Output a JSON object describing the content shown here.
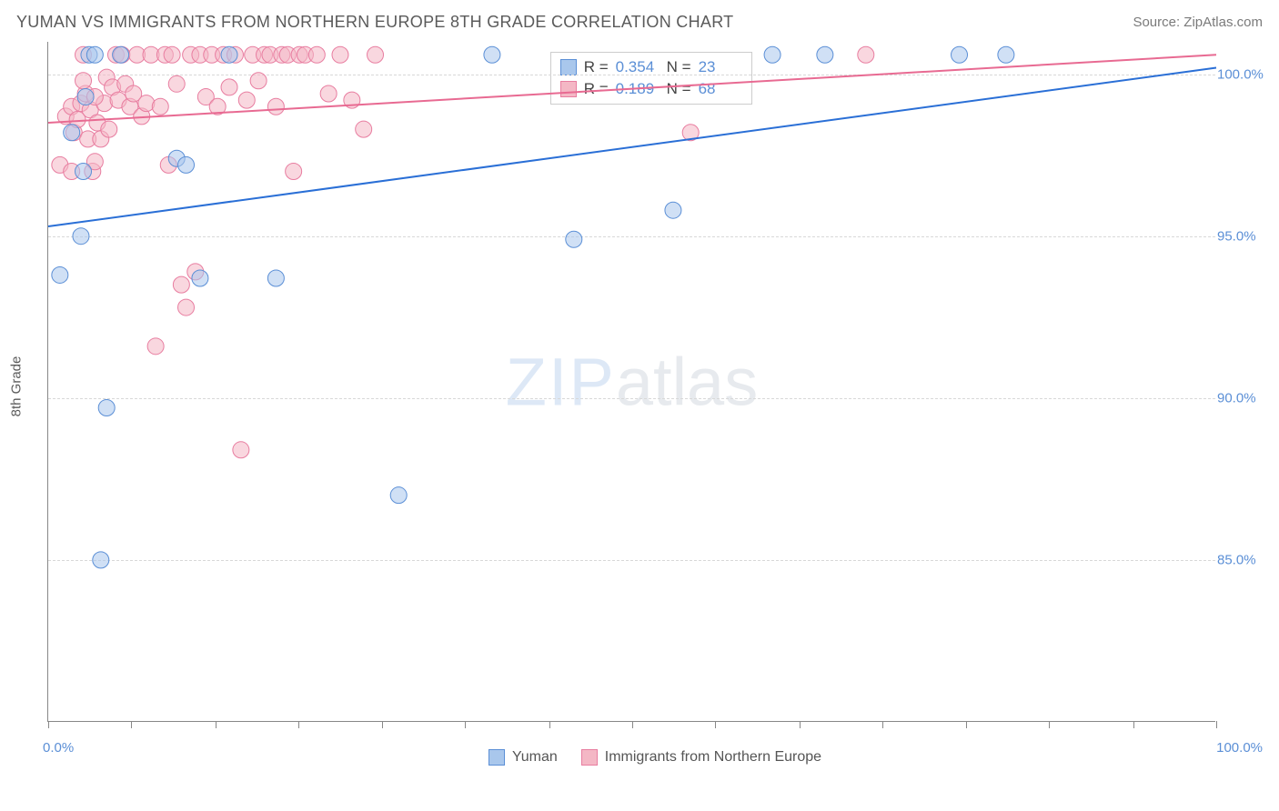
{
  "header": {
    "title": "YUMAN VS IMMIGRANTS FROM NORTHERN EUROPE 8TH GRADE CORRELATION CHART",
    "source": "Source: ZipAtlas.com"
  },
  "watermark": {
    "part1": "ZIP",
    "part2": "atlas"
  },
  "chart": {
    "type": "scatter",
    "background_color": "#ffffff",
    "grid_color": "#d8d8d8",
    "axis_color": "#888888",
    "label_color": "#5a5a5a",
    "tick_label_color": "#5b8fd6",
    "xlim": [
      0,
      100
    ],
    "ylim": [
      80,
      101
    ],
    "x_axis": {
      "min_label": "0.0%",
      "max_label": "100.0%",
      "tick_positions": [
        0,
        7.1,
        14.3,
        21.4,
        28.6,
        35.7,
        42.9,
        50,
        57.1,
        64.3,
        71.4,
        78.6,
        85.7,
        92.9,
        100
      ]
    },
    "y_axis": {
      "label": "8th Grade",
      "gridlines": [
        {
          "value": 100,
          "label": "100.0%"
        },
        {
          "value": 95,
          "label": "95.0%"
        },
        {
          "value": 90,
          "label": "90.0%"
        },
        {
          "value": 85,
          "label": "85.0%"
        }
      ]
    },
    "series": [
      {
        "name": "Yuman",
        "color_fill": "#a9c7ec",
        "color_stroke": "#5b8fd6",
        "fill_opacity": 0.55,
        "marker_radius": 9,
        "trend": {
          "slope_start_y": 95.3,
          "slope_end_y": 100.2,
          "line_width": 2,
          "line_color": "#2a6fd6"
        },
        "stats": {
          "R": "0.354",
          "N": "23"
        },
        "points": [
          [
            1.0,
            93.8
          ],
          [
            2.0,
            98.2
          ],
          [
            3.0,
            97.0
          ],
          [
            3.2,
            99.3
          ],
          [
            3.5,
            100.6
          ],
          [
            4.0,
            100.6
          ],
          [
            5.0,
            89.7
          ],
          [
            6.2,
            100.6
          ],
          [
            11.0,
            97.4
          ],
          [
            11.8,
            97.2
          ],
          [
            13.0,
            93.7
          ],
          [
            15.5,
            100.6
          ],
          [
            19.5,
            93.7
          ],
          [
            30.0,
            87.0
          ],
          [
            38.0,
            100.6
          ],
          [
            45.0,
            94.9
          ],
          [
            53.5,
            95.8
          ],
          [
            62.0,
            100.6
          ],
          [
            66.5,
            100.6
          ],
          [
            78.0,
            100.6
          ],
          [
            82.0,
            100.6
          ],
          [
            4.5,
            85.0
          ],
          [
            2.8,
            95.0
          ]
        ]
      },
      {
        "name": "Immigrants from Northern Europe",
        "color_fill": "#f4b7c5",
        "color_stroke": "#e87da0",
        "fill_opacity": 0.55,
        "marker_radius": 9,
        "trend": {
          "slope_start_y": 98.5,
          "slope_end_y": 100.6,
          "line_width": 2,
          "line_color": "#e86a92"
        },
        "stats": {
          "R": "0.189",
          "N": "68"
        },
        "points": [
          [
            1.0,
            97.2
          ],
          [
            1.5,
            98.7
          ],
          [
            2.0,
            99.0
          ],
          [
            2.2,
            98.2
          ],
          [
            2.5,
            98.6
          ],
          [
            2.8,
            99.1
          ],
          [
            3.0,
            100.6
          ],
          [
            3.2,
            99.4
          ],
          [
            3.4,
            98.0
          ],
          [
            3.6,
            98.9
          ],
          [
            3.8,
            97.0
          ],
          [
            4.0,
            97.3
          ],
          [
            4.2,
            98.5
          ],
          [
            4.5,
            98.0
          ],
          [
            4.8,
            99.1
          ],
          [
            5.0,
            99.9
          ],
          [
            5.2,
            98.3
          ],
          [
            5.5,
            99.6
          ],
          [
            5.8,
            100.6
          ],
          [
            6.0,
            99.2
          ],
          [
            6.3,
            100.6
          ],
          [
            6.6,
            99.7
          ],
          [
            7.0,
            99.0
          ],
          [
            7.3,
            99.4
          ],
          [
            7.6,
            100.6
          ],
          [
            8.0,
            98.7
          ],
          [
            8.4,
            99.1
          ],
          [
            8.8,
            100.6
          ],
          [
            9.2,
            91.6
          ],
          [
            9.6,
            99.0
          ],
          [
            10.0,
            100.6
          ],
          [
            10.3,
            97.2
          ],
          [
            10.6,
            100.6
          ],
          [
            11.0,
            99.7
          ],
          [
            11.4,
            93.5
          ],
          [
            11.8,
            92.8
          ],
          [
            12.2,
            100.6
          ],
          [
            12.6,
            93.9
          ],
          [
            13.0,
            100.6
          ],
          [
            13.5,
            99.3
          ],
          [
            14.0,
            100.6
          ],
          [
            14.5,
            99.0
          ],
          [
            15.0,
            100.6
          ],
          [
            15.5,
            99.6
          ],
          [
            16.0,
            100.6
          ],
          [
            16.5,
            88.4
          ],
          [
            17.0,
            99.2
          ],
          [
            17.5,
            100.6
          ],
          [
            18.0,
            99.8
          ],
          [
            18.5,
            100.6
          ],
          [
            19.0,
            100.6
          ],
          [
            19.5,
            99.0
          ],
          [
            20.0,
            100.6
          ],
          [
            20.5,
            100.6
          ],
          [
            21.0,
            97.0
          ],
          [
            21.5,
            100.6
          ],
          [
            22.0,
            100.6
          ],
          [
            23.0,
            100.6
          ],
          [
            24.0,
            99.4
          ],
          [
            25.0,
            100.6
          ],
          [
            26.0,
            99.2
          ],
          [
            27.0,
            98.3
          ],
          [
            28.0,
            100.6
          ],
          [
            55.0,
            98.2
          ],
          [
            70.0,
            100.6
          ],
          [
            2.0,
            97.0
          ],
          [
            3.0,
            99.8
          ],
          [
            4.0,
            99.3
          ]
        ]
      }
    ],
    "stats_box": {
      "left_pct": 43,
      "top_pct": 1.5
    },
    "legend": [
      {
        "label": "Yuman",
        "fill": "#a9c7ec",
        "stroke": "#5b8fd6"
      },
      {
        "label": "Immigrants from Northern Europe",
        "fill": "#f4b7c5",
        "stroke": "#e87da0"
      }
    ]
  }
}
